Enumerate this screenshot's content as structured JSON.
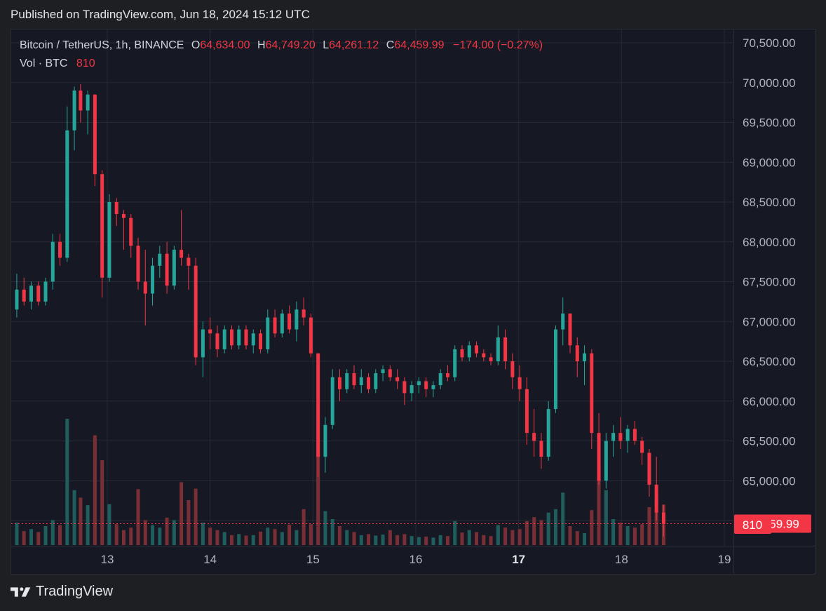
{
  "header": {
    "published": "Published on TradingView.com, Jun 18, 2024 15:12 UTC"
  },
  "legend": {
    "symbol": "Bitcoin / TetherUS, 1h, BINANCE",
    "open_label": "O",
    "open": "64,634.00",
    "high_label": "H",
    "high": "64,749.20",
    "low_label": "L",
    "low": "64,261.12",
    "close_label": "C",
    "close": "64,459.99",
    "change": "−174.00 (−0.27%)",
    "vol_label": "Vol · BTC",
    "vol_value": "810"
  },
  "footer": {
    "brand": "TradingView"
  },
  "colors": {
    "up": "#26a69a",
    "down": "#f23645",
    "vol_up": "#1f5e5c",
    "vol_down": "#7a2e35",
    "grid": "#262a35",
    "axis_text": "#b2b5be",
    "badge": "#f23645"
  },
  "chart_data": {
    "type": "candlestick",
    "symbol": "BTCUSDT",
    "interval": "1h",
    "y_ticks": [
      "70,500.00",
      "70,000.00",
      "69,500.00",
      "69,000.00",
      "68,500.00",
      "68,000.00",
      "67,500.00",
      "67,000.00",
      "66,500.00",
      "66,000.00",
      "65,500.00",
      "65,000.00",
      "64,500.00"
    ],
    "ylim": [
      64500,
      70500
    ],
    "x_ticks": [
      {
        "label": "13",
        "bold": false
      },
      {
        "label": "14",
        "bold": false
      },
      {
        "label": "15",
        "bold": false
      },
      {
        "label": "16",
        "bold": false
      },
      {
        "label": "17",
        "bold": true
      },
      {
        "label": "18",
        "bold": false
      },
      {
        "label": "19",
        "bold": false
      }
    ],
    "xlim": [
      12.1,
      19.0
    ],
    "last_price": "64,459.99",
    "last_price_value": 64459.99,
    "last_volume": "810",
    "candles": [
      {
        "t": 12.12,
        "o": 67150,
        "h": 67600,
        "l": 67050,
        "c": 67400,
        "v": 450
      },
      {
        "t": 12.19,
        "o": 67400,
        "h": 67550,
        "l": 67200,
        "c": 67250,
        "v": 280
      },
      {
        "t": 12.26,
        "o": 67250,
        "h": 67500,
        "l": 67150,
        "c": 67450,
        "v": 320
      },
      {
        "t": 12.33,
        "o": 67450,
        "h": 67500,
        "l": 67200,
        "c": 67250,
        "v": 260
      },
      {
        "t": 12.4,
        "o": 67250,
        "h": 67550,
        "l": 67200,
        "c": 67500,
        "v": 380
      },
      {
        "t": 12.47,
        "o": 67500,
        "h": 68100,
        "l": 67400,
        "c": 68000,
        "v": 500
      },
      {
        "t": 12.54,
        "o": 68000,
        "h": 68100,
        "l": 67700,
        "c": 67800,
        "v": 400
      },
      {
        "t": 12.61,
        "o": 67800,
        "h": 69700,
        "l": 67750,
        "c": 69400,
        "v": 2530
      },
      {
        "t": 12.68,
        "o": 69400,
        "h": 69950,
        "l": 69150,
        "c": 69900,
        "v": 1100
      },
      {
        "t": 12.74,
        "o": 69900,
        "h": 69980,
        "l": 69500,
        "c": 69650,
        "v": 950
      },
      {
        "t": 12.81,
        "o": 69650,
        "h": 69900,
        "l": 69350,
        "c": 69850,
        "v": 800
      },
      {
        "t": 12.88,
        "o": 69850,
        "h": 69850,
        "l": 68700,
        "c": 68850,
        "v": 2200
      },
      {
        "t": 12.95,
        "o": 68850,
        "h": 68900,
        "l": 67300,
        "c": 67550,
        "v": 1700
      },
      {
        "t": 13.02,
        "o": 67550,
        "h": 68600,
        "l": 67500,
        "c": 68500,
        "v": 820
      },
      {
        "t": 13.09,
        "o": 68500,
        "h": 68550,
        "l": 68200,
        "c": 68350,
        "v": 420
      },
      {
        "t": 13.16,
        "o": 68350,
        "h": 68400,
        "l": 67900,
        "c": 68300,
        "v": 300
      },
      {
        "t": 13.23,
        "o": 68300,
        "h": 68350,
        "l": 67800,
        "c": 67950,
        "v": 350
      },
      {
        "t": 13.3,
        "o": 67950,
        "h": 68050,
        "l": 67400,
        "c": 67500,
        "v": 1120
      },
      {
        "t": 13.37,
        "o": 67500,
        "h": 67900,
        "l": 66950,
        "c": 67350,
        "v": 500
      },
      {
        "t": 13.44,
        "o": 67350,
        "h": 67800,
        "l": 67200,
        "c": 67700,
        "v": 400
      },
      {
        "t": 13.51,
        "o": 67700,
        "h": 67950,
        "l": 67550,
        "c": 67850,
        "v": 350
      },
      {
        "t": 13.58,
        "o": 67850,
        "h": 68000,
        "l": 67350,
        "c": 67450,
        "v": 550
      },
      {
        "t": 13.65,
        "o": 67450,
        "h": 67950,
        "l": 67400,
        "c": 67900,
        "v": 500
      },
      {
        "t": 13.72,
        "o": 67900,
        "h": 68400,
        "l": 67700,
        "c": 67800,
        "v": 1260
      },
      {
        "t": 13.79,
        "o": 67800,
        "h": 67850,
        "l": 67400,
        "c": 67700,
        "v": 900
      },
      {
        "t": 13.86,
        "o": 67700,
        "h": 67800,
        "l": 66450,
        "c": 66550,
        "v": 1130
      },
      {
        "t": 13.93,
        "o": 66550,
        "h": 67000,
        "l": 66300,
        "c": 66900,
        "v": 450
      },
      {
        "t": 14.0,
        "o": 66900,
        "h": 67050,
        "l": 66650,
        "c": 66850,
        "v": 350
      },
      {
        "t": 14.07,
        "o": 66850,
        "h": 66950,
        "l": 66550,
        "c": 66650,
        "v": 300
      },
      {
        "t": 14.14,
        "o": 66650,
        "h": 66950,
        "l": 66600,
        "c": 66900,
        "v": 260
      },
      {
        "t": 14.21,
        "o": 66900,
        "h": 66950,
        "l": 66650,
        "c": 66700,
        "v": 200
      },
      {
        "t": 14.28,
        "o": 66700,
        "h": 66950,
        "l": 66650,
        "c": 66900,
        "v": 220
      },
      {
        "t": 14.35,
        "o": 66900,
        "h": 66950,
        "l": 66650,
        "c": 66700,
        "v": 190
      },
      {
        "t": 14.42,
        "o": 66700,
        "h": 66900,
        "l": 66600,
        "c": 66850,
        "v": 200
      },
      {
        "t": 14.49,
        "o": 66850,
        "h": 66900,
        "l": 66600,
        "c": 66650,
        "v": 270
      },
      {
        "t": 14.56,
        "o": 66650,
        "h": 67150,
        "l": 66600,
        "c": 67050,
        "v": 350
      },
      {
        "t": 14.63,
        "o": 67050,
        "h": 67150,
        "l": 66800,
        "c": 66850,
        "v": 320
      },
      {
        "t": 14.7,
        "o": 66850,
        "h": 67150,
        "l": 66800,
        "c": 67100,
        "v": 260
      },
      {
        "t": 14.77,
        "o": 67100,
        "h": 67200,
        "l": 66850,
        "c": 66900,
        "v": 410
      },
      {
        "t": 14.84,
        "o": 66900,
        "h": 67250,
        "l": 66750,
        "c": 67150,
        "v": 300
      },
      {
        "t": 14.91,
        "o": 67150,
        "h": 67300,
        "l": 66950,
        "c": 67050,
        "v": 720
      },
      {
        "t": 14.98,
        "o": 67050,
        "h": 67100,
        "l": 66550,
        "c": 66600,
        "v": 420
      },
      {
        "t": 15.05,
        "o": 66600,
        "h": 66600,
        "l": 65050,
        "c": 65300,
        "v": 2050
      },
      {
        "t": 15.12,
        "o": 65300,
        "h": 65800,
        "l": 65100,
        "c": 65700,
        "v": 680
      },
      {
        "t": 15.19,
        "o": 65700,
        "h": 66400,
        "l": 65650,
        "c": 66300,
        "v": 520
      },
      {
        "t": 15.26,
        "o": 66300,
        "h": 66400,
        "l": 66000,
        "c": 66150,
        "v": 380
      },
      {
        "t": 15.33,
        "o": 66150,
        "h": 66400,
        "l": 66100,
        "c": 66350,
        "v": 300
      },
      {
        "t": 15.4,
        "o": 66350,
        "h": 66450,
        "l": 66150,
        "c": 66200,
        "v": 260
      },
      {
        "t": 15.47,
        "o": 66200,
        "h": 66400,
        "l": 66100,
        "c": 66300,
        "v": 200
      },
      {
        "t": 15.54,
        "o": 66300,
        "h": 66350,
        "l": 66100,
        "c": 66150,
        "v": 220
      },
      {
        "t": 15.61,
        "o": 66150,
        "h": 66400,
        "l": 66100,
        "c": 66350,
        "v": 190
      },
      {
        "t": 15.68,
        "o": 66350,
        "h": 66450,
        "l": 66250,
        "c": 66400,
        "v": 210
      },
      {
        "t": 15.75,
        "o": 66400,
        "h": 66450,
        "l": 66250,
        "c": 66300,
        "v": 300
      },
      {
        "t": 15.82,
        "o": 66300,
        "h": 66400,
        "l": 66150,
        "c": 66250,
        "v": 200
      },
      {
        "t": 15.89,
        "o": 66250,
        "h": 66300,
        "l": 65950,
        "c": 66100,
        "v": 220
      },
      {
        "t": 15.96,
        "o": 66100,
        "h": 66250,
        "l": 66000,
        "c": 66200,
        "v": 180
      },
      {
        "t": 16.03,
        "o": 66200,
        "h": 66300,
        "l": 66100,
        "c": 66250,
        "v": 160
      },
      {
        "t": 16.1,
        "o": 66250,
        "h": 66300,
        "l": 66050,
        "c": 66150,
        "v": 170
      },
      {
        "t": 16.17,
        "o": 66150,
        "h": 66250,
        "l": 66050,
        "c": 66200,
        "v": 150
      },
      {
        "t": 16.24,
        "o": 66200,
        "h": 66400,
        "l": 66150,
        "c": 66350,
        "v": 200
      },
      {
        "t": 16.31,
        "o": 66350,
        "h": 66450,
        "l": 66250,
        "c": 66300,
        "v": 180
      },
      {
        "t": 16.38,
        "o": 66300,
        "h": 66700,
        "l": 66250,
        "c": 66650,
        "v": 480
      },
      {
        "t": 16.45,
        "o": 66650,
        "h": 66700,
        "l": 66500,
        "c": 66550,
        "v": 250
      },
      {
        "t": 16.52,
        "o": 66550,
        "h": 66750,
        "l": 66500,
        "c": 66700,
        "v": 300
      },
      {
        "t": 16.59,
        "o": 66700,
        "h": 66750,
        "l": 66550,
        "c": 66600,
        "v": 260
      },
      {
        "t": 16.66,
        "o": 66600,
        "h": 66650,
        "l": 66500,
        "c": 66550,
        "v": 200
      },
      {
        "t": 16.73,
        "o": 66550,
        "h": 66600,
        "l": 66450,
        "c": 66500,
        "v": 180
      },
      {
        "t": 16.8,
        "o": 66500,
        "h": 66950,
        "l": 66450,
        "c": 66800,
        "v": 400
      },
      {
        "t": 16.87,
        "o": 66800,
        "h": 66900,
        "l": 66400,
        "c": 66500,
        "v": 350
      },
      {
        "t": 16.94,
        "o": 66500,
        "h": 66600,
        "l": 66150,
        "c": 66300,
        "v": 300
      },
      {
        "t": 17.01,
        "o": 66300,
        "h": 66450,
        "l": 66000,
        "c": 66150,
        "v": 320
      },
      {
        "t": 17.08,
        "o": 66150,
        "h": 66300,
        "l": 65450,
        "c": 65600,
        "v": 480
      },
      {
        "t": 17.15,
        "o": 65600,
        "h": 65900,
        "l": 65300,
        "c": 65500,
        "v": 560
      },
      {
        "t": 17.22,
        "o": 65500,
        "h": 65600,
        "l": 65150,
        "c": 65300,
        "v": 500
      },
      {
        "t": 17.29,
        "o": 65300,
        "h": 66000,
        "l": 65250,
        "c": 65900,
        "v": 650
      },
      {
        "t": 17.36,
        "o": 65900,
        "h": 66950,
        "l": 65850,
        "c": 66900,
        "v": 720
      },
      {
        "t": 17.43,
        "o": 66900,
        "h": 67300,
        "l": 66700,
        "c": 67100,
        "v": 1050
      },
      {
        "t": 17.5,
        "o": 67100,
        "h": 67100,
        "l": 66600,
        "c": 66700,
        "v": 380
      },
      {
        "t": 17.57,
        "o": 66700,
        "h": 66800,
        "l": 66300,
        "c": 66500,
        "v": 280
      },
      {
        "t": 17.64,
        "o": 66500,
        "h": 66700,
        "l": 66200,
        "c": 66600,
        "v": 240
      },
      {
        "t": 17.71,
        "o": 66600,
        "h": 66650,
        "l": 65400,
        "c": 65600,
        "v": 700
      },
      {
        "t": 17.78,
        "o": 65600,
        "h": 65850,
        "l": 64950,
        "c": 65000,
        "v": 1530
      },
      {
        "t": 17.85,
        "o": 65000,
        "h": 65600,
        "l": 64900,
        "c": 65500,
        "v": 1100
      },
      {
        "t": 17.92,
        "o": 65500,
        "h": 65700,
        "l": 65300,
        "c": 65600,
        "v": 520
      },
      {
        "t": 17.99,
        "o": 65600,
        "h": 65800,
        "l": 65400,
        "c": 65500,
        "v": 450
      },
      {
        "t": 18.06,
        "o": 65500,
        "h": 65700,
        "l": 65350,
        "c": 65650,
        "v": 380
      },
      {
        "t": 18.13,
        "o": 65650,
        "h": 65750,
        "l": 65450,
        "c": 65500,
        "v": 350
      },
      {
        "t": 18.2,
        "o": 65500,
        "h": 65550,
        "l": 65200,
        "c": 65350,
        "v": 420
      },
      {
        "t": 18.27,
        "o": 65350,
        "h": 65400,
        "l": 64800,
        "c": 64950,
        "v": 760
      },
      {
        "t": 18.34,
        "o": 64950,
        "h": 65300,
        "l": 64500,
        "c": 64600,
        "v": 1000
      },
      {
        "t": 18.41,
        "o": 64600,
        "h": 64700,
        "l": 64300,
        "c": 64460,
        "v": 810
      }
    ]
  }
}
